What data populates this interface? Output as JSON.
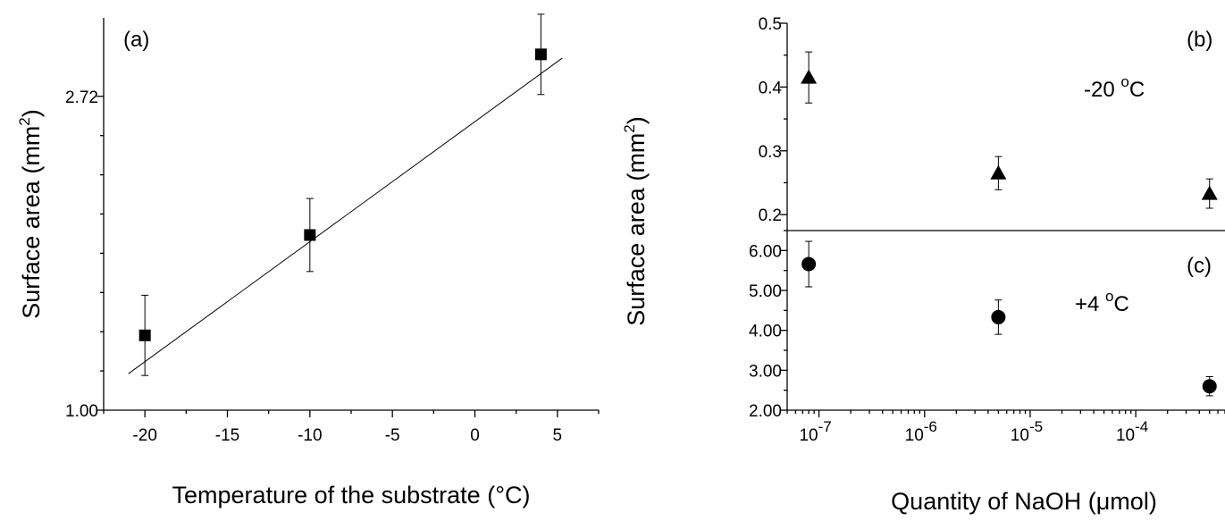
{
  "chart_data": [
    {
      "id": "a",
      "type": "scatter",
      "panel_label": "(a)",
      "xlabel": "Temperature of the substrate (°C)",
      "ylabel_main": "Surface area (mm",
      "ylabel_sup": "2",
      "ylabel_close": ")",
      "xlim": [
        -22.5,
        7.5
      ],
      "ylim": [
        1.0,
        3.15
      ],
      "xticks": [
        -20,
        -15,
        -10,
        -5,
        0,
        5
      ],
      "xtick_labels": [
        "-20",
        "-15",
        "-10",
        "-5",
        "0",
        "5"
      ],
      "yticks": [
        1.0,
        2.72
      ],
      "ytick_labels": [
        "1.00",
        "2.72"
      ],
      "marker": "square",
      "points": [
        {
          "x": -20,
          "y": 1.41,
          "err": 0.22
        },
        {
          "x": -10,
          "y": 1.96,
          "err": 0.2
        },
        {
          "x": 4,
          "y": 2.95,
          "err": 0.22
        }
      ],
      "fit_line": {
        "x": [
          -21,
          5.3
        ],
        "y": [
          1.2,
          2.93
        ]
      }
    },
    {
      "id": "b",
      "type": "scatter",
      "panel_label": "(b)",
      "annotation_text": "-20 ",
      "annotation_sup": "o",
      "annotation_unit": "C",
      "xscale": "log",
      "ylim": [
        0.175,
        0.5
      ],
      "yticks": [
        0.2,
        0.3,
        0.4,
        0.5
      ],
      "ytick_labels": [
        "0.2",
        "0.3",
        "0.4",
        "0.5"
      ],
      "marker": "triangle",
      "points": [
        {
          "x": 8e-08,
          "y": 0.415,
          "err": 0.04
        },
        {
          "x": 5e-06,
          "y": 0.265,
          "err": 0.026
        },
        {
          "x": 0.0005,
          "y": 0.233,
          "err": 0.023
        }
      ]
    },
    {
      "id": "c",
      "type": "scatter",
      "panel_label": "(c)",
      "annotation_text": "+4 ",
      "annotation_sup": "o",
      "annotation_unit": "C",
      "xlabel": "Quantity of NaOH (μmol)",
      "ylabel_main": "Surface area (mm",
      "ylabel_sup": "2",
      "ylabel_close": ")",
      "xscale": "log",
      "xlim": [
        5e-08,
        0.0007
      ],
      "xtick_labels": [
        {
          "base": "10",
          "exp": "-7"
        },
        {
          "base": "10",
          "exp": "-6"
        },
        {
          "base": "10",
          "exp": "-5"
        },
        {
          "base": "10",
          "exp": "-4"
        }
      ],
      "xticks": [
        1e-07,
        1e-06,
        1e-05,
        0.0001
      ],
      "ylim": [
        2.0,
        6.5
      ],
      "yticks": [
        2.0,
        3.0,
        4.0,
        5.0,
        6.0
      ],
      "ytick_labels": [
        "2.00",
        "3.00",
        "4.00",
        "5.00",
        "6.00"
      ],
      "marker": "circle",
      "points": [
        {
          "x": 8e-08,
          "y": 5.66,
          "err": 0.57
        },
        {
          "x": 5e-06,
          "y": 4.33,
          "err": 0.43
        },
        {
          "x": 0.0005,
          "y": 2.6,
          "err": 0.24
        }
      ]
    }
  ]
}
